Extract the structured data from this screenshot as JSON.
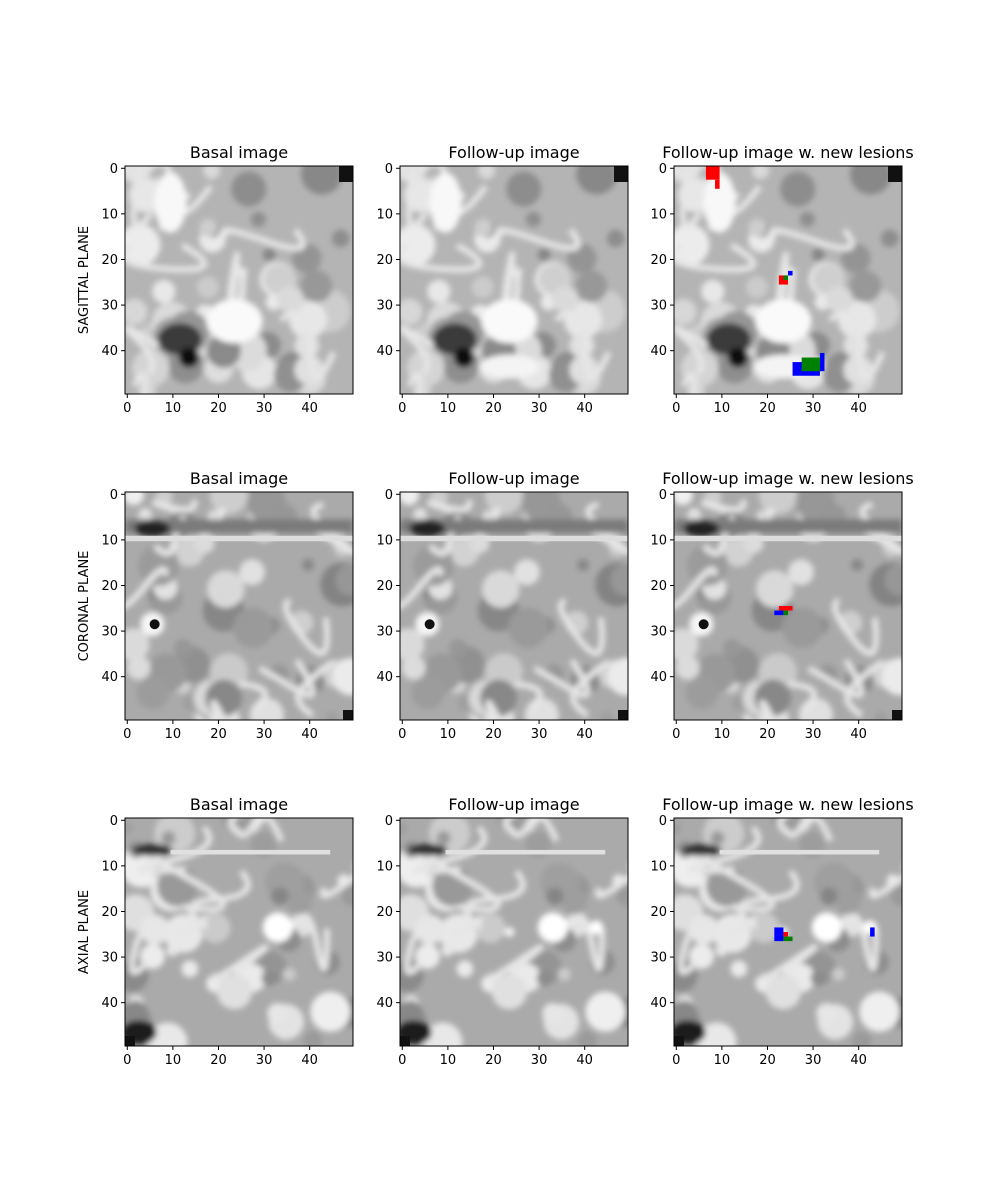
{
  "figure": {
    "rows": [
      {
        "label": "SAGITTAL PLANE",
        "titles": [
          "Basal image",
          "Follow-up image",
          "Follow-up image w. new lesions"
        ]
      },
      {
        "label": "CORONAL PLANE",
        "titles": [
          "Basal image",
          "Follow-up image",
          "Follow-up image w. new lesions"
        ]
      },
      {
        "label": "AXIAL PLANE",
        "titles": [
          "Basal image",
          "Follow-up image",
          "Follow-up image w. new lesions"
        ]
      }
    ],
    "ticks": {
      "x": [
        "0",
        "10",
        "20",
        "30",
        "40"
      ],
      "y": [
        "0",
        "10",
        "20",
        "30",
        "40"
      ]
    },
    "image_size_voxels": [
      50,
      50
    ],
    "overlay_colors": {
      "red": "#ff0000",
      "green": "#008000",
      "blue": "#0000ff"
    },
    "lesion_overlays": [
      {
        "row": 0,
        "color": "red",
        "voxels": [
          [
            7,
            0,
            3,
            3
          ],
          [
            9,
            3,
            1,
            2
          ],
          [
            23,
            24,
            2,
            2
          ]
        ]
      },
      {
        "row": 0,
        "color": "blue",
        "voxels": [
          [
            25,
            23,
            1,
            1
          ],
          [
            26,
            43,
            6,
            3
          ],
          [
            32,
            41,
            1,
            4
          ]
        ]
      },
      {
        "row": 0,
        "color": "green",
        "voxels": [
          [
            24,
            24,
            1,
            1
          ],
          [
            28,
            42,
            4,
            3
          ]
        ]
      },
      {
        "row": 1,
        "color": "red",
        "voxels": [
          [
            23,
            25,
            3,
            1
          ]
        ]
      },
      {
        "row": 1,
        "color": "blue",
        "voxels": [
          [
            22,
            26,
            2,
            1
          ]
        ]
      },
      {
        "row": 1,
        "color": "green",
        "voxels": [
          [
            24,
            26,
            1,
            1
          ]
        ]
      },
      {
        "row": 2,
        "color": "blue",
        "voxels": [
          [
            22,
            24,
            2,
            3
          ],
          [
            43,
            24,
            1,
            2
          ]
        ]
      },
      {
        "row": 2,
        "color": "red",
        "voxels": [
          [
            24,
            25,
            1,
            1
          ]
        ]
      },
      {
        "row": 2,
        "color": "green",
        "voxels": [
          [
            24,
            26,
            2,
            1
          ]
        ]
      }
    ]
  }
}
